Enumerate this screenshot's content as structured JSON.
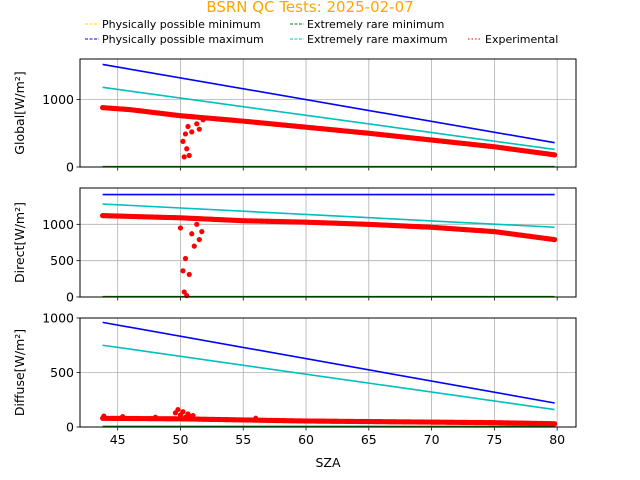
{
  "title": "BSRN QC Tests: 2025-02-07",
  "colors": {
    "min_possible": "#ffd700",
    "max_possible": "#0000ff",
    "min_rare": "#008000",
    "max_rare": "#00bfbf",
    "experimental": "#ff0000",
    "title": "#ffa500",
    "grid": "#b0b0b0"
  },
  "legend": [
    {
      "key": "min_possible",
      "label": "Physically possible minimum",
      "style": "dashed"
    },
    {
      "key": "min_rare",
      "label": "Extremely rare minimum",
      "style": "dashed"
    },
    {
      "key": "max_possible",
      "label": "Physically possible maximum",
      "style": "dashed"
    },
    {
      "key": "max_rare",
      "label": "Extremely rare maximum",
      "style": "dashed"
    },
    {
      "key": "experimental",
      "label": "Experimental",
      "style": "dotted"
    }
  ],
  "chart_data": [
    {
      "type": "line",
      "panel": "global",
      "xlabel": "",
      "ylabel": "Global[W/m²]",
      "xlim": [
        42,
        81.5
      ],
      "ylim": [
        0,
        1600
      ],
      "yticks": [
        0,
        1000
      ],
      "grid": true,
      "series": [
        {
          "key": "max_possible",
          "x": [
            43.8,
            79.8
          ],
          "y": [
            1520,
            360
          ]
        },
        {
          "key": "max_rare",
          "x": [
            43.8,
            79.8
          ],
          "y": [
            1180,
            260
          ]
        },
        {
          "key": "min_rare",
          "x": [
            43.8,
            79.8
          ],
          "y": [
            5,
            5
          ]
        },
        {
          "key": "min_possible",
          "x": [
            43.8,
            79.8
          ],
          "y": [
            0,
            0
          ]
        }
      ],
      "experimental": {
        "trend_x": [
          43.8,
          46,
          50,
          55,
          60,
          65,
          70,
          75,
          79.8
        ],
        "trend_y": [
          880,
          850,
          760,
          680,
          590,
          500,
          400,
          300,
          180
        ],
        "dip_x": [
          50.2,
          50.3,
          50.4,
          50.5,
          50.6,
          50.7,
          50.9,
          51.1,
          51.3,
          51.5,
          51.8
        ],
        "dip_y": [
          380,
          150,
          490,
          270,
          600,
          170,
          520,
          740,
          640,
          560,
          700
        ]
      }
    },
    {
      "type": "line",
      "panel": "direct",
      "xlabel": "",
      "ylabel": "Direct[W/m²]",
      "xlim": [
        42,
        81.5
      ],
      "ylim": [
        0,
        1500
      ],
      "yticks": [
        0,
        500,
        1000
      ],
      "grid": true,
      "series": [
        {
          "key": "max_possible",
          "x": [
            43.8,
            79.8
          ],
          "y": [
            1410,
            1410
          ]
        },
        {
          "key": "max_rare",
          "x": [
            43.8,
            79.8
          ],
          "y": [
            1280,
            960
          ]
        },
        {
          "key": "min_rare",
          "x": [
            43.8,
            79.8
          ],
          "y": [
            5,
            5
          ]
        },
        {
          "key": "min_possible",
          "x": [
            43.8,
            79.8
          ],
          "y": [
            0,
            0
          ]
        }
      ],
      "experimental": {
        "trend_x": [
          43.8,
          50,
          55,
          60,
          65,
          70,
          75,
          79.8
        ],
        "trend_y": [
          1120,
          1090,
          1050,
          1030,
          1000,
          960,
          900,
          790
        ],
        "dip_x": [
          50.0,
          50.2,
          50.3,
          50.4,
          50.5,
          50.7,
          50.9,
          51.1,
          51.3,
          51.5,
          51.7
        ],
        "dip_y": [
          950,
          360,
          70,
          530,
          20,
          310,
          870,
          700,
          1000,
          790,
          900
        ]
      }
    },
    {
      "type": "line",
      "panel": "diffuse",
      "xlabel": "SZA",
      "ylabel": "Diffuse[W/m²]",
      "xlim": [
        42,
        81.5
      ],
      "ylim": [
        0,
        1000
      ],
      "yticks": [
        0,
        500,
        1000
      ],
      "xticks": [
        45,
        50,
        55,
        60,
        65,
        70,
        75,
        80
      ],
      "grid": true,
      "series": [
        {
          "key": "max_possible",
          "x": [
            43.8,
            79.8
          ],
          "y": [
            960,
            220
          ]
        },
        {
          "key": "max_rare",
          "x": [
            43.8,
            79.8
          ],
          "y": [
            750,
            160
          ]
        },
        {
          "key": "min_rare",
          "x": [
            43.8,
            79.8
          ],
          "y": [
            5,
            5
          ]
        },
        {
          "key": "min_possible",
          "x": [
            43.8,
            79.8
          ],
          "y": [
            0,
            0
          ]
        }
      ],
      "experimental": {
        "trend_x": [
          43.8,
          50,
          55,
          60,
          65,
          70,
          75,
          79.8
        ],
        "trend_y": [
          80,
          75,
          65,
          55,
          50,
          45,
          40,
          30
        ],
        "dip_x": [
          49.6,
          49.8,
          50.0,
          50.2,
          50.4,
          50.6,
          50.8,
          51.0,
          43.9,
          45.4,
          48.0,
          56.0
        ],
        "dip_y": [
          130,
          160,
          110,
          140,
          90,
          120,
          95,
          105,
          100,
          95,
          90,
          80
        ]
      }
    }
  ]
}
